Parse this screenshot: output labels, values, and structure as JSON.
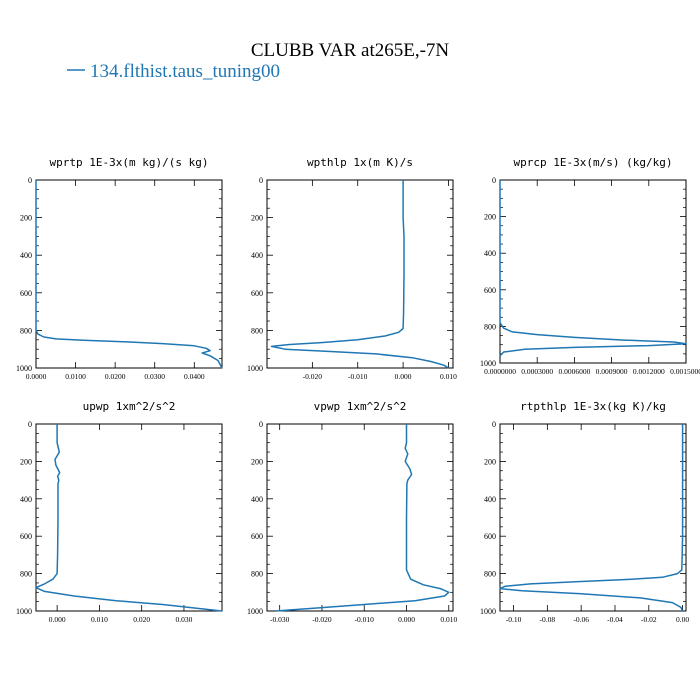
{
  "figure": {
    "title": "CLUBB VAR at265E,-7N",
    "legend_label": "134.flthist.taus_tuning00",
    "series_color": "#1f77b4"
  },
  "chart_data": [
    {
      "type": "line",
      "title": "wprtp  1E-3x(m kg)/(s kg)",
      "xlim": [
        0,
        0.047
      ],
      "ylim": [
        1000,
        0
      ],
      "xticks": [
        "0.0000",
        "0.0100",
        "0.0200",
        "0.0300",
        "0.0400"
      ],
      "xtick_values": [
        0,
        0.01,
        0.02,
        0.03,
        0.04
      ],
      "yticks": [
        "0",
        "200",
        "400",
        "600",
        "800",
        "1000"
      ],
      "ytick_values": [
        0,
        200,
        400,
        600,
        800,
        1000
      ],
      "series": [
        {
          "x": [
            0,
            0,
            0,
            0,
            0.0005,
            0.002,
            0.005,
            0.012,
            0.022,
            0.032,
            0.04,
            0.043,
            0.044,
            0.042,
            0.044,
            0.046,
            0.047
          ],
          "y": [
            0,
            200,
            600,
            800,
            820,
            835,
            845,
            852,
            860,
            870,
            882,
            895,
            908,
            920,
            935,
            960,
            1000
          ]
        }
      ]
    },
    {
      "type": "line",
      "title": "wpthlp  1x(m K)/s",
      "xlim": [
        -0.03,
        0.011
      ],
      "ylim": [
        1000,
        0
      ],
      "xticks": [
        "-0.020",
        "-0.010",
        "0.000",
        "0.010"
      ],
      "xtick_values": [
        -0.02,
        -0.01,
        0,
        0.01
      ],
      "yticks": [
        "0",
        "200",
        "400",
        "600",
        "800",
        "1000"
      ],
      "ytick_values": [
        0,
        200,
        400,
        600,
        800,
        1000
      ],
      "series": [
        {
          "x": [
            0,
            0,
            0.0002,
            0.0002,
            0.0001,
            0,
            -0.001,
            -0.004,
            -0.01,
            -0.018,
            -0.025,
            -0.029,
            -0.026,
            -0.016,
            -0.006,
            0.002,
            0.006,
            0.009,
            0.01
          ],
          "y": [
            0,
            200,
            300,
            500,
            700,
            790,
            810,
            830,
            850,
            865,
            875,
            885,
            900,
            912,
            925,
            945,
            965,
            985,
            1000
          ]
        }
      ]
    },
    {
      "type": "line",
      "title": "wprcp  1E-3x(m/s) (kg/kg)",
      "xlim": [
        0,
        0.0015
      ],
      "ylim": [
        1000,
        0
      ],
      "xticks": [
        "0.0000000",
        "0.0003000",
        "0.0006000",
        "0.0009000",
        "0.0012000",
        "0.0015000"
      ],
      "xtick_values": [
        0,
        0.0003,
        0.0006,
        0.0009,
        0.0012,
        0.0015
      ],
      "yticks": [
        "0",
        "200",
        "400",
        "600",
        "800",
        "1000"
      ],
      "ytick_values": [
        0,
        200,
        400,
        600,
        800,
        1000
      ],
      "series": [
        {
          "x": [
            0,
            0,
            0,
            3e-05,
            0.0001,
            0.0003,
            0.0006,
            0.001,
            0.0014,
            0.0015,
            0.0012,
            0.0006,
            0.0002,
            3e-05,
            0
          ],
          "y": [
            0,
            200,
            780,
            810,
            830,
            845,
            860,
            875,
            885,
            895,
            905,
            915,
            925,
            940,
            960
          ]
        }
      ]
    },
    {
      "type": "line",
      "title": "upwp  1xm^2/s^2",
      "xlim": [
        -0.005,
        0.039
      ],
      "ylim": [
        1000,
        0
      ],
      "xticks": [
        "0.000",
        "0.010",
        "0.020",
        "0.030"
      ],
      "xtick_values": [
        0,
        0.01,
        0.02,
        0.03
      ],
      "yticks": [
        "0",
        "200",
        "400",
        "600",
        "800",
        "1000"
      ],
      "ytick_values": [
        0,
        200,
        400,
        600,
        800,
        1000
      ],
      "series": [
        {
          "x": [
            0,
            0,
            0.0003,
            0.0005,
            -0.0005,
            -0.0003,
            0.0006,
            0.0001,
            0.0004,
            0.0002,
            0.0002,
            0.0001,
            0,
            -0.001,
            -0.003,
            -0.005,
            -0.003,
            0.004,
            0.014,
            0.025,
            0.033,
            0.039
          ],
          "y": [
            0,
            100,
            130,
            150,
            190,
            220,
            260,
            280,
            300,
            320,
            500,
            700,
            800,
            830,
            855,
            875,
            895,
            920,
            945,
            965,
            985,
            1000
          ]
        }
      ]
    },
    {
      "type": "line",
      "title": "vpwp  1xm^2/s^2",
      "xlim": [
        -0.033,
        0.011
      ],
      "ylim": [
        1000,
        0
      ],
      "xticks": [
        "-0.030",
        "-0.020",
        "-0.010",
        "0.000",
        "0.010"
      ],
      "xtick_values": [
        -0.03,
        -0.02,
        -0.01,
        0,
        0.01
      ],
      "yticks": [
        "0",
        "200",
        "400",
        "600",
        "800",
        "1000"
      ],
      "ytick_values": [
        0,
        200,
        400,
        600,
        800,
        1000
      ],
      "series": [
        {
          "x": [
            0,
            0,
            -0.0003,
            0.0003,
            -0.0003,
            0.0008,
            0.0012,
            0.0003,
            0.0001,
            0,
            0,
            0.001,
            0.004,
            0.008,
            0.01,
            0.009,
            0.002,
            -0.01,
            -0.022,
            -0.031
          ],
          "y": [
            0,
            100,
            130,
            160,
            200,
            240,
            270,
            300,
            320,
            500,
            780,
            830,
            860,
            880,
            900,
            920,
            945,
            965,
            985,
            1000
          ]
        }
      ]
    },
    {
      "type": "line",
      "title": "rtpthlp  1E-3x(kg K)/kg",
      "xlim": [
        -0.108,
        0.002
      ],
      "ylim": [
        1000,
        0
      ],
      "xticks": [
        "-0.10",
        "-0.08",
        "-0.06",
        "-0.04",
        "-0.02",
        "0.00"
      ],
      "xtick_values": [
        -0.1,
        -0.08,
        -0.06,
        -0.04,
        -0.02,
        0
      ],
      "yticks": [
        "0",
        "200",
        "400",
        "600",
        "800",
        "1000"
      ],
      "ytick_values": [
        0,
        200,
        400,
        600,
        800,
        1000
      ],
      "series": [
        {
          "x": [
            0,
            0,
            -0.0005,
            -0.003,
            -0.012,
            -0.03,
            -0.06,
            -0.09,
            -0.105,
            -0.108,
            -0.095,
            -0.06,
            -0.025,
            -0.006,
            -0.001,
            0
          ],
          "y": [
            0,
            600,
            780,
            800,
            820,
            830,
            842,
            855,
            868,
            880,
            892,
            908,
            930,
            955,
            980,
            1000
          ]
        }
      ]
    }
  ]
}
